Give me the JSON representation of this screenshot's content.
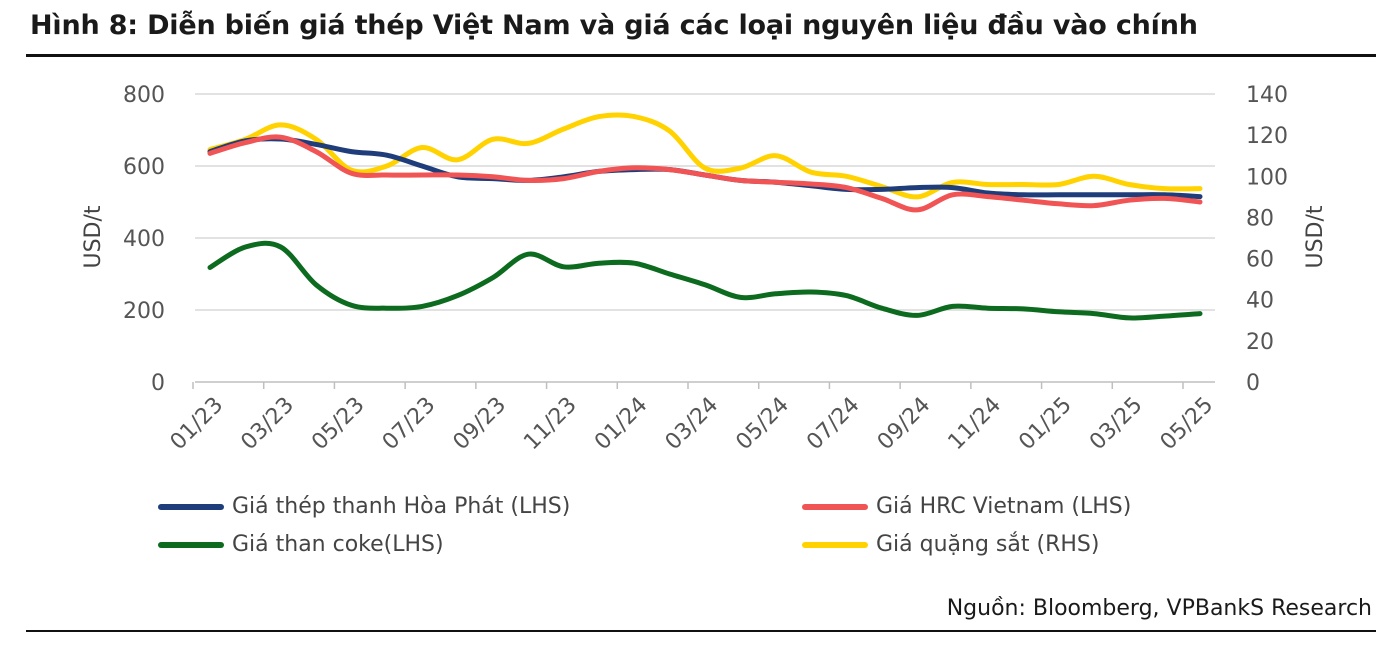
{
  "title": "Hình 8: Diễn biến giá thép Việt Nam và giá các loại nguyên liệu đầu vào chính",
  "source": "Nguồn: Bloomberg, VPBankS Research",
  "chart_data": {
    "type": "line",
    "x": [
      "01/23",
      "02/23",
      "03/23",
      "04/23",
      "05/23",
      "06/23",
      "07/23",
      "08/23",
      "09/23",
      "10/23",
      "11/23",
      "12/23",
      "01/24",
      "02/24",
      "03/24",
      "04/24",
      "05/24",
      "06/24",
      "07/24",
      "08/24",
      "09/24",
      "10/24",
      "11/24",
      "12/24",
      "01/25",
      "02/25",
      "03/25",
      "04/25",
      "05/25"
    ],
    "x_tick_labels": [
      "01/23",
      "03/23",
      "05/23",
      "07/23",
      "09/23",
      "11/23",
      "01/24",
      "03/24",
      "05/24",
      "07/24",
      "09/24",
      "11/24",
      "01/25",
      "03/25",
      "05/25"
    ],
    "y_left": {
      "label": "USD/t",
      "ticks": [
        "0",
        "200",
        "400",
        "600",
        "800"
      ],
      "lim": [
        0,
        800
      ]
    },
    "y_right": {
      "label": "USD/t",
      "ticks": [
        "0",
        "20",
        "40",
        "60",
        "80",
        "100",
        "120",
        "140"
      ],
      "lim": [
        0,
        140
      ]
    },
    "grid": true,
    "legend_position": "bottom",
    "series": [
      {
        "name": "Giá thép thanh Hòa Phát (LHS)",
        "axis": "left",
        "color": "#1f3d7a",
        "values": [
          640,
          670,
          675,
          660,
          640,
          630,
          600,
          570,
          565,
          560,
          570,
          585,
          590,
          590,
          575,
          560,
          555,
          545,
          535,
          535,
          540,
          540,
          525,
          520,
          520,
          520,
          520,
          520,
          515
        ]
      },
      {
        "name": "Giá HRC Vietnam (LHS)",
        "axis": "left",
        "color": "#f05454",
        "values": [
          635,
          665,
          680,
          640,
          580,
          575,
          575,
          575,
          570,
          560,
          565,
          585,
          595,
          590,
          575,
          560,
          555,
          550,
          540,
          510,
          478,
          520,
          515,
          505,
          495,
          490,
          505,
          510,
          500
        ]
      },
      {
        "name": "Giá than coke(LHS)",
        "axis": "left",
        "color": "#0d6b1f",
        "values": [
          318,
          375,
          375,
          270,
          213,
          205,
          210,
          240,
          290,
          355,
          320,
          330,
          330,
          300,
          270,
          235,
          245,
          250,
          240,
          205,
          185,
          210,
          205,
          203,
          195,
          190,
          178,
          183,
          190
        ]
      },
      {
        "name": "Giá quặng sắt (RHS)",
        "axis": "right",
        "color": "#ffd200",
        "values": [
          113,
          118,
          125,
          118,
          103,
          105,
          114,
          108,
          118,
          116,
          123,
          129,
          129,
          122,
          104,
          104,
          110,
          102,
          100,
          95,
          90,
          97,
          96,
          96,
          96,
          100,
          96,
          94,
          94
        ]
      }
    ]
  }
}
